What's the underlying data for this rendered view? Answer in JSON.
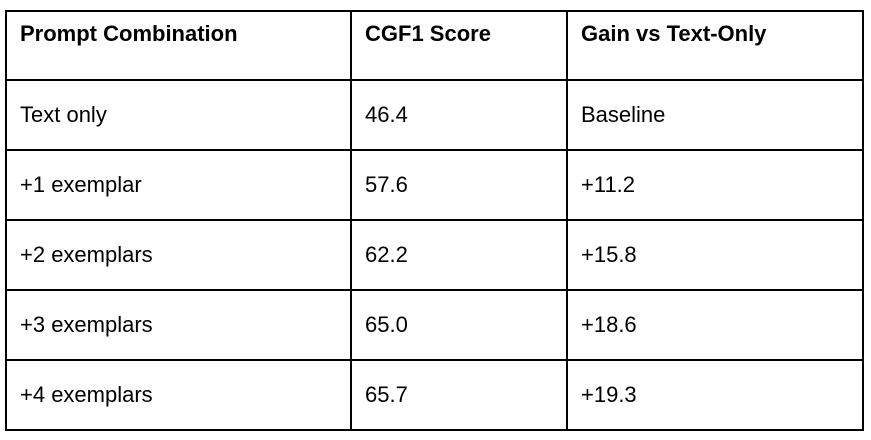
{
  "table": {
    "headers": [
      "Prompt Combination",
      "CGF1 Score",
      "Gain vs Text-Only"
    ],
    "rows": [
      [
        "Text only",
        "46.4",
        "Baseline"
      ],
      [
        "+1 exemplar",
        "57.6",
        "+11.2"
      ],
      [
        "+2 exemplars",
        "62.2",
        "+15.8"
      ],
      [
        "+3 exemplars",
        "65.0",
        "+18.6"
      ],
      [
        "+4 exemplars",
        "65.7",
        "+19.3"
      ]
    ]
  },
  "colors": {
    "background": "#ffffff",
    "border": "#000000",
    "text": "#000000"
  }
}
